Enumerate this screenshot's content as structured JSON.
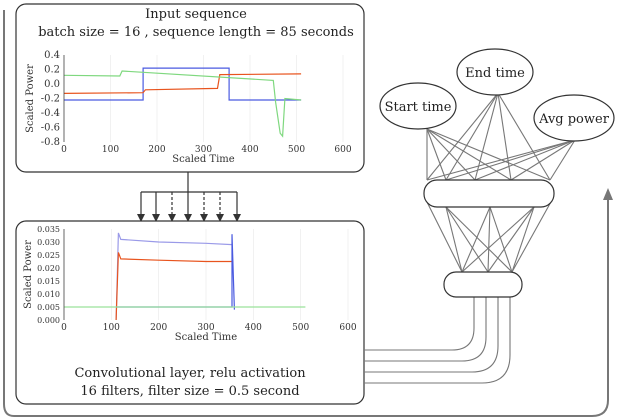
{
  "input_box": {
    "title": "Input sequence",
    "subtitle": "batch size  = 16 , sequence length = 85 seconds"
  },
  "conv_box": {
    "caption_line1": "Convolutional layer, relu activation",
    "caption_line2": "16 filters, filter size = 0.5 second"
  },
  "network": {
    "output_nodes": [
      "Start time",
      "End time",
      "Avg power"
    ]
  },
  "chart_data": [
    {
      "type": "line",
      "xlabel": "Scaled  Time",
      "ylabel": "Scaled  Power",
      "xlim": [
        0,
        600
      ],
      "ylim": [
        -0.8,
        0.4
      ],
      "x_ticks": [
        "0",
        "100",
        "200",
        "300",
        "400",
        "500",
        "600"
      ],
      "y_ticks": [
        "0.4",
        "0.2",
        "0.0",
        "-0.2",
        "-0.4",
        "-0.6",
        "-0.8"
      ],
      "series": [
        {
          "color": "#4a5ae0",
          "x": [
            0,
            170,
            170,
            355,
            355,
            510
          ],
          "y": [
            -0.22,
            -0.22,
            0.22,
            0.22,
            -0.22,
            -0.22
          ]
        },
        {
          "color": "#e8541e",
          "x": [
            0,
            170,
            175,
            330,
            335,
            510
          ],
          "y": [
            -0.13,
            -0.12,
            -0.08,
            -0.06,
            0.13,
            0.14
          ]
        },
        {
          "color": "#7fd87f",
          "x": [
            0,
            120,
            125,
            450,
            455,
            465,
            470,
            475,
            510
          ],
          "y": [
            0.12,
            0.11,
            0.18,
            0.05,
            -0.25,
            -0.68,
            -0.72,
            -0.2,
            -0.22
          ]
        }
      ]
    },
    {
      "type": "line",
      "xlabel": "Scaled  Time",
      "ylabel": "Scaled  Power",
      "xlim": [
        0,
        600
      ],
      "ylim": [
        0,
        0.035
      ],
      "x_ticks": [
        "0",
        "100",
        "200",
        "300",
        "400",
        "500",
        "600"
      ],
      "y_ticks": [
        "0.035",
        "0.030",
        "0.025",
        "0.020",
        "0.015",
        "0.010",
        "0.005",
        "0.000"
      ],
      "series": [
        {
          "color": "#9a9ae8",
          "x": [
            110,
            115,
            120,
            200,
            300,
            355
          ],
          "y": [
            0,
            0.0335,
            0.031,
            0.03,
            0.0295,
            0.029
          ]
        },
        {
          "color": "#e8541e",
          "x": [
            110,
            115,
            120,
            200,
            300,
            355
          ],
          "y": [
            0,
            0.026,
            0.0235,
            0.023,
            0.0225,
            0.0225
          ]
        },
        {
          "color": "#4a5ae0",
          "x": [
            110,
            120,
            355,
            355,
            360
          ],
          "y": [
            0.005,
            0.005,
            0.005,
            0.033,
            0.004
          ]
        },
        {
          "color": "#9be29b",
          "x": [
            0,
            510
          ],
          "y": [
            0.005,
            0.005
          ]
        }
      ]
    }
  ]
}
